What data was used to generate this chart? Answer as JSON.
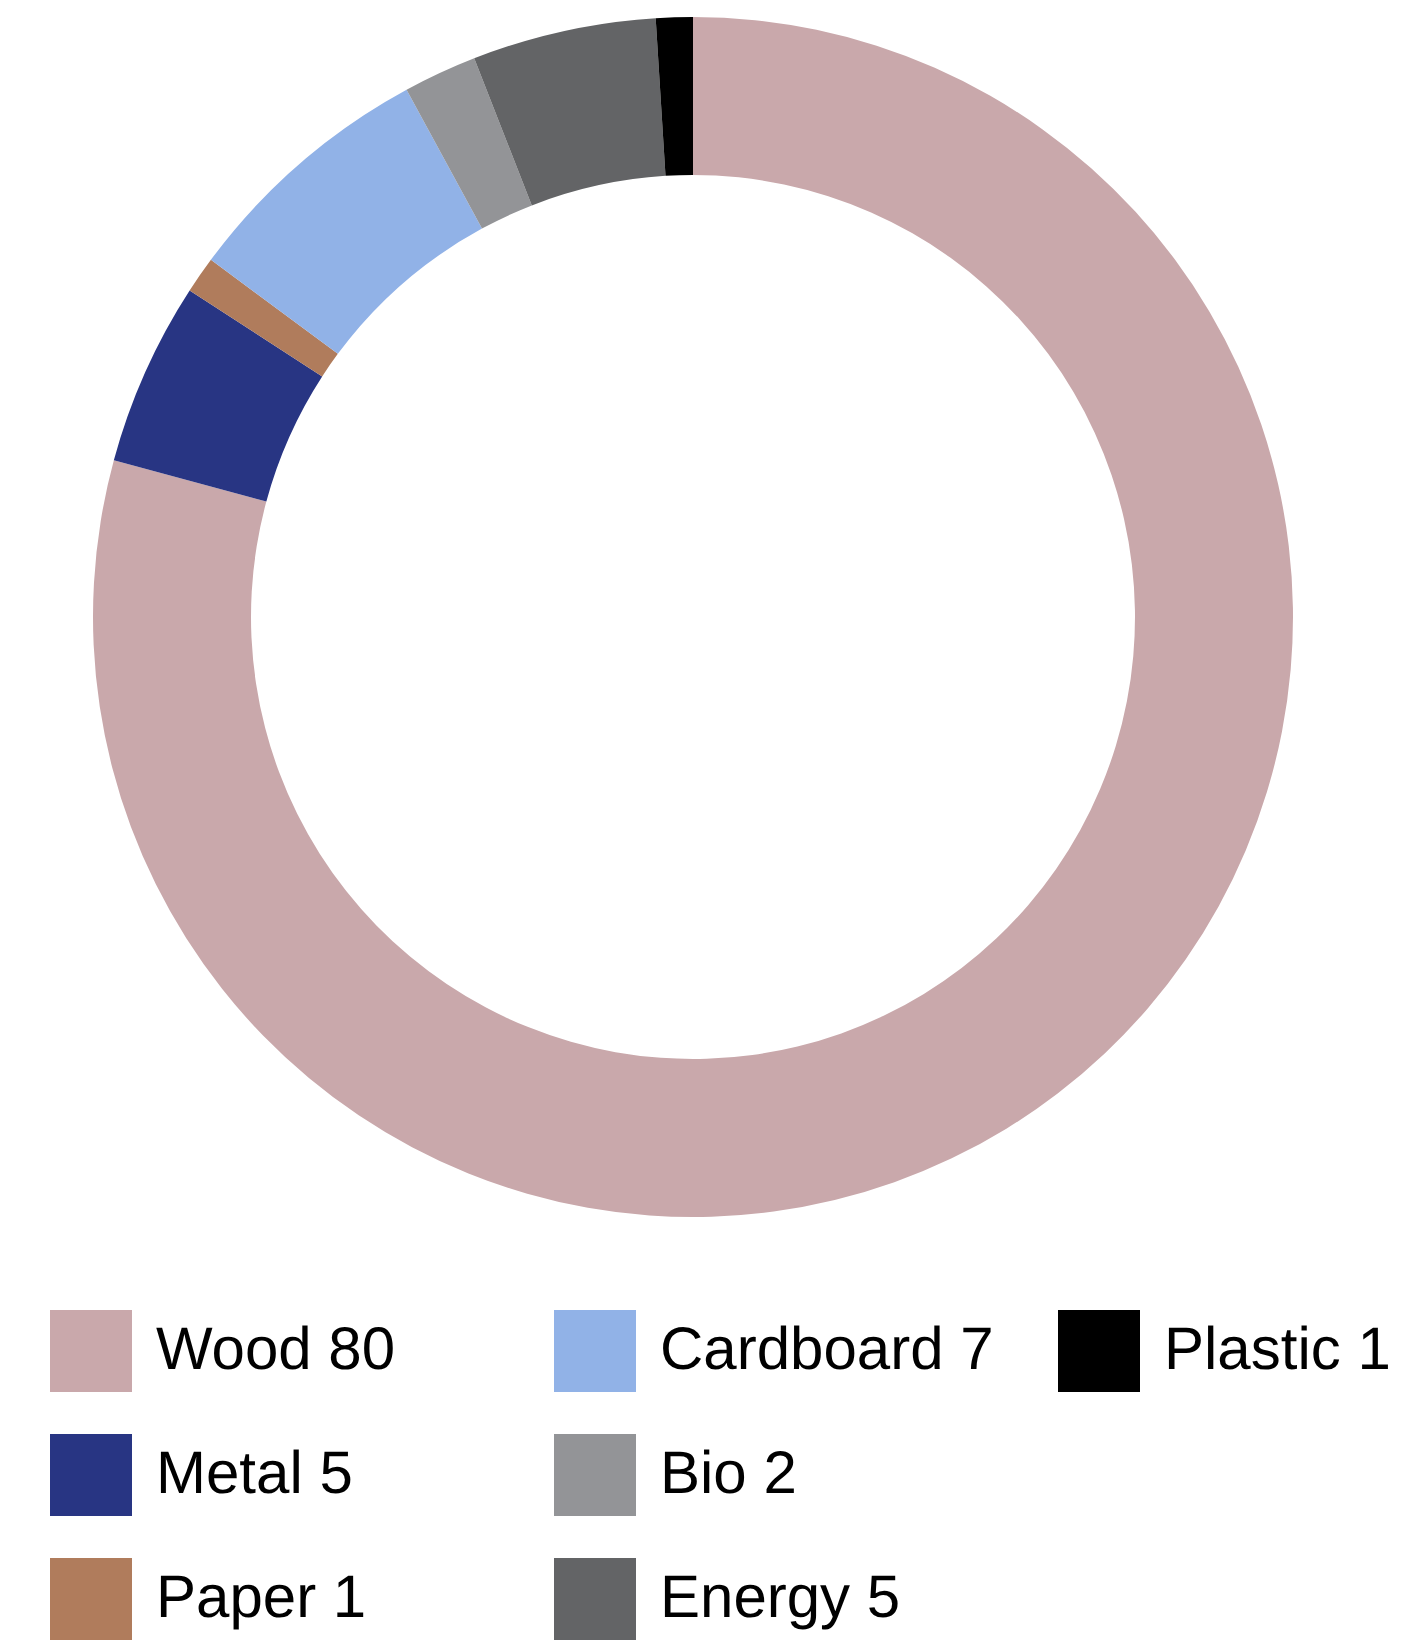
{
  "chart_data": {
    "type": "donut",
    "categories": [
      "Wood 80",
      "Metal 5",
      "Paper 1",
      "Cardboard 7",
      "Bio 2",
      "Energy 5",
      "Plastic 1"
    ],
    "values": [
      80,
      5,
      1,
      7,
      2,
      5,
      1
    ],
    "colors": [
      "#c9a8ab",
      "#283583",
      "#b07c5c",
      "#91b2e7",
      "#939497",
      "#636466",
      "#000000"
    ],
    "legend": "bottom"
  }
}
